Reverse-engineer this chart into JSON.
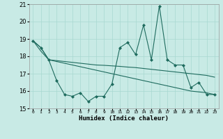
{
  "x": [
    0,
    1,
    2,
    3,
    4,
    5,
    6,
    7,
    8,
    9,
    10,
    11,
    12,
    13,
    14,
    15,
    16,
    17,
    18,
    19,
    20,
    21,
    22,
    23
  ],
  "line1": [
    18.9,
    18.5,
    17.8,
    16.6,
    15.8,
    15.7,
    15.9,
    15.4,
    15.7,
    15.7,
    16.4,
    18.5,
    18.8,
    18.1,
    19.8,
    17.8,
    20.9,
    17.8,
    17.5,
    17.5,
    16.2,
    16.5,
    15.8,
    15.8
  ],
  "line2": [
    18.9,
    18.5,
    17.8,
    17.75,
    17.7,
    17.65,
    17.6,
    17.55,
    17.5,
    17.48,
    17.45,
    17.42,
    17.38,
    17.35,
    17.3,
    17.25,
    17.2,
    17.15,
    17.1,
    17.05,
    17.0,
    16.95,
    16.9,
    16.8
  ],
  "line3": [
    18.9,
    18.3,
    17.8,
    17.7,
    17.6,
    17.5,
    17.4,
    17.3,
    17.2,
    17.1,
    17.0,
    16.9,
    16.8,
    16.7,
    16.6,
    16.5,
    16.4,
    16.3,
    16.2,
    16.1,
    16.0,
    15.95,
    15.9,
    15.8
  ],
  "bg_color": "#c8eae5",
  "grid_color": "#a8d8d0",
  "line_color": "#1e6b5e",
  "xlabel": "Humidex (Indice chaleur)",
  "ylim": [
    15,
    21
  ],
  "xlim": [
    -0.5,
    23.5
  ],
  "yticks": [
    15,
    16,
    17,
    18,
    19,
    20,
    21
  ],
  "xtick_labels": [
    "0",
    "1",
    "2",
    "3",
    "4",
    "5",
    "6",
    "7",
    "8",
    "9",
    "10",
    "11",
    "12",
    "13",
    "14",
    "15",
    "16",
    "17",
    "18",
    "19",
    "20",
    "21",
    "22",
    "23"
  ]
}
